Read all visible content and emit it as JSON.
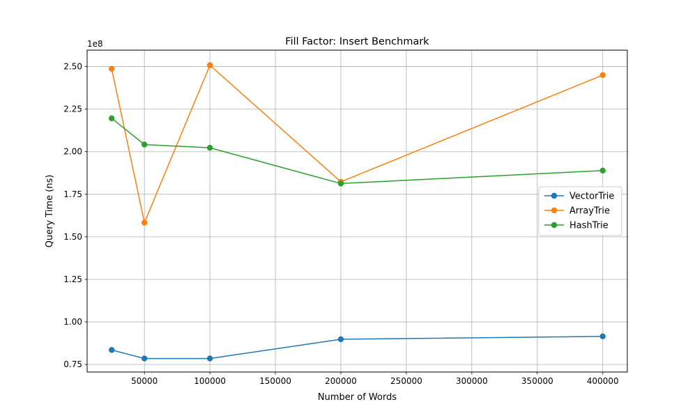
{
  "chart_data": {
    "type": "line",
    "title": "Fill Factor: Insert Benchmark",
    "xlabel": "Number of Words",
    "ylabel": "Query Time (ns)",
    "y_offset_label": "1e8",
    "x": [
      25000,
      50000,
      100000,
      200000,
      400000
    ],
    "xlim": [
      6250,
      418750
    ],
    "ylim": [
      0.7055,
      2.5965
    ],
    "xticks": [
      50000,
      100000,
      150000,
      200000,
      250000,
      300000,
      350000,
      400000
    ],
    "xtick_labels": [
      "50000",
      "100000",
      "150000",
      "200000",
      "250000",
      "300000",
      "350000",
      "400000"
    ],
    "yticks": [
      0.75,
      1.0,
      1.25,
      1.5,
      1.75,
      2.0,
      2.25,
      2.5
    ],
    "ytick_labels": [
      "0.75",
      "1.00",
      "1.25",
      "1.50",
      "1.75",
      "2.00",
      "2.25",
      "2.50"
    ],
    "grid": true,
    "legend_position": "center-right",
    "series": [
      {
        "name": "VectorTrie",
        "color": "#1f77b4",
        "values": [
          0.835,
          0.785,
          0.785,
          0.898,
          0.915
        ]
      },
      {
        "name": "ArrayTrie",
        "color": "#ff7f0e",
        "values": [
          2.487,
          1.583,
          2.508,
          1.823,
          2.45
        ]
      },
      {
        "name": "HashTrie",
        "color": "#2ca02c",
        "values": [
          2.196,
          2.042,
          2.023,
          1.813,
          1.889
        ]
      }
    ]
  }
}
